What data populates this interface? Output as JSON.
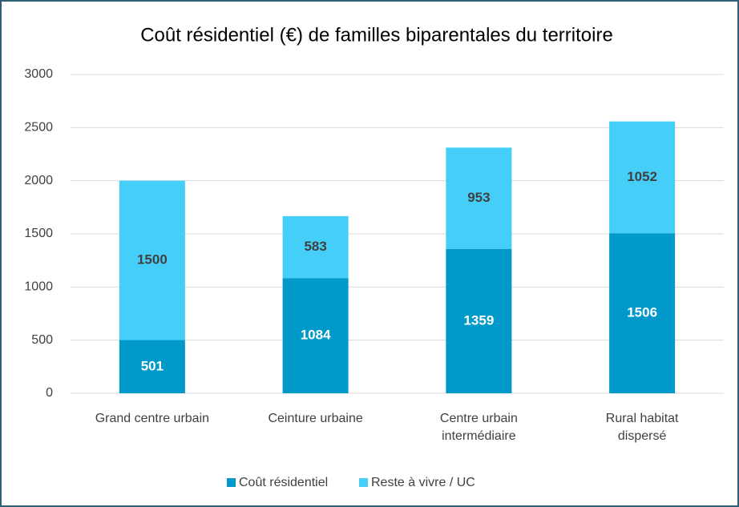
{
  "chart_data": {
    "type": "stacked_bar",
    "title": "Coût résidentiel (€) de familles biparentales du territoire",
    "categories": [
      "Grand centre urbain",
      "Ceinture urbaine",
      "Centre urbain\nintermédiaire",
      "Rural habitat\ndispersé"
    ],
    "series": [
      {
        "name": "Coût résidentiel",
        "color": "#0099c9",
        "values": [
          501,
          1084,
          1359,
          1506
        ]
      },
      {
        "name": "Reste à vivre / UC",
        "color": "#45cff8",
        "values": [
          1500,
          583,
          953,
          1052
        ]
      }
    ],
    "ylim": [
      0,
      3000
    ],
    "yticks": [
      0,
      500,
      1000,
      1500,
      2000,
      2500,
      3000
    ],
    "grid": true,
    "legend": "bottom"
  }
}
